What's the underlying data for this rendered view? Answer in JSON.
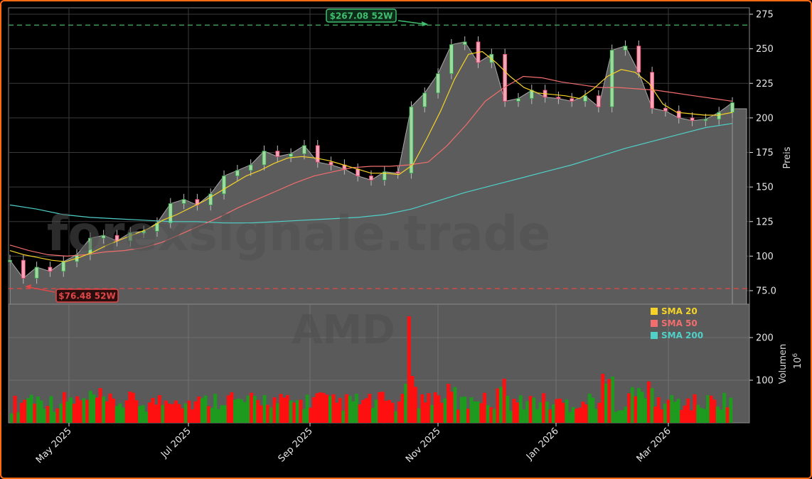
{
  "chart_data": {
    "type": "candlestick+volume",
    "ticker": "AMD",
    "watermark": "forexsignale.trade",
    "price_axis": {
      "label": "Preis",
      "ticks": [
        75.0,
        100,
        125,
        150,
        175,
        200,
        225,
        250,
        275
      ],
      "tick_labels": [
        "75.0",
        "100",
        "125",
        "150",
        "175",
        "200",
        "225",
        "250",
        "275"
      ],
      "ylim": [
        70,
        278
      ]
    },
    "volume_axis": {
      "label": "Volumen",
      "unit": "10^6",
      "unit_base": "10",
      "unit_exp": "6",
      "ticks": [
        100,
        200
      ],
      "tick_labels": [
        "100",
        "200"
      ],
      "ylim": [
        0,
        275
      ]
    },
    "x_axis": {
      "tick_labels": [
        "May 2025",
        "Jul 2025",
        "Sep 2025",
        "Nov 2025",
        "Jan 2026",
        "Mar 2026"
      ],
      "tick_x": [
        97,
        265,
        436,
        616,
        782,
        940
      ]
    },
    "annotations": {
      "high": {
        "label": "$267.08 52W",
        "value": 267.08,
        "color": "#3fbf6f"
      },
      "low": {
        "label": "$76.48 52W",
        "value": 76.48,
        "color": "#e04848"
      }
    },
    "legend": [
      {
        "label": "SMA 20",
        "color": "#f5d327"
      },
      {
        "label": "SMA 50",
        "color": "#f26d6d"
      },
      {
        "label": "SMA 200",
        "color": "#4fd0c8"
      }
    ],
    "weekly_close": [
      97,
      84,
      92,
      89,
      96,
      101,
      113,
      115,
      111,
      117,
      118,
      124,
      138,
      141,
      137,
      145,
      158,
      162,
      166,
      176,
      172,
      174,
      180,
      168,
      166,
      163,
      158,
      155,
      161,
      160,
      208,
      218,
      232,
      253,
      255,
      240,
      246,
      212,
      214,
      220,
      215,
      214,
      212,
      216,
      208,
      249,
      252,
      233,
      207,
      205,
      200,
      198,
      199,
      204,
      211
    ],
    "sma20": [
      104,
      101,
      99,
      97,
      96,
      99,
      103,
      108,
      112,
      116,
      120,
      126,
      130,
      135,
      140,
      146,
      152,
      158,
      162,
      167,
      171,
      172,
      171,
      169,
      166,
      163,
      160,
      160,
      159,
      166,
      185,
      205,
      228,
      246,
      248,
      240,
      230,
      222,
      218,
      217,
      216,
      214,
      221,
      230,
      235,
      233,
      225,
      210,
      204,
      203,
      202,
      202,
      204
    ],
    "sma50": [
      108,
      104,
      101,
      100,
      101,
      103,
      104,
      106,
      110,
      116,
      122,
      128,
      135,
      141,
      147,
      153,
      158,
      161,
      164,
      165,
      165,
      166,
      168,
      180,
      195,
      212,
      222,
      230,
      229,
      226,
      224,
      222,
      222,
      221,
      220,
      218,
      216,
      214,
      212
    ],
    "sma200": [
      137,
      134,
      130,
      128,
      127,
      126,
      125,
      125,
      124,
      124,
      125,
      126,
      127,
      128,
      130,
      134,
      140,
      146,
      151,
      156,
      161,
      166,
      172,
      178,
      183,
      188,
      193,
      196
    ]
  }
}
